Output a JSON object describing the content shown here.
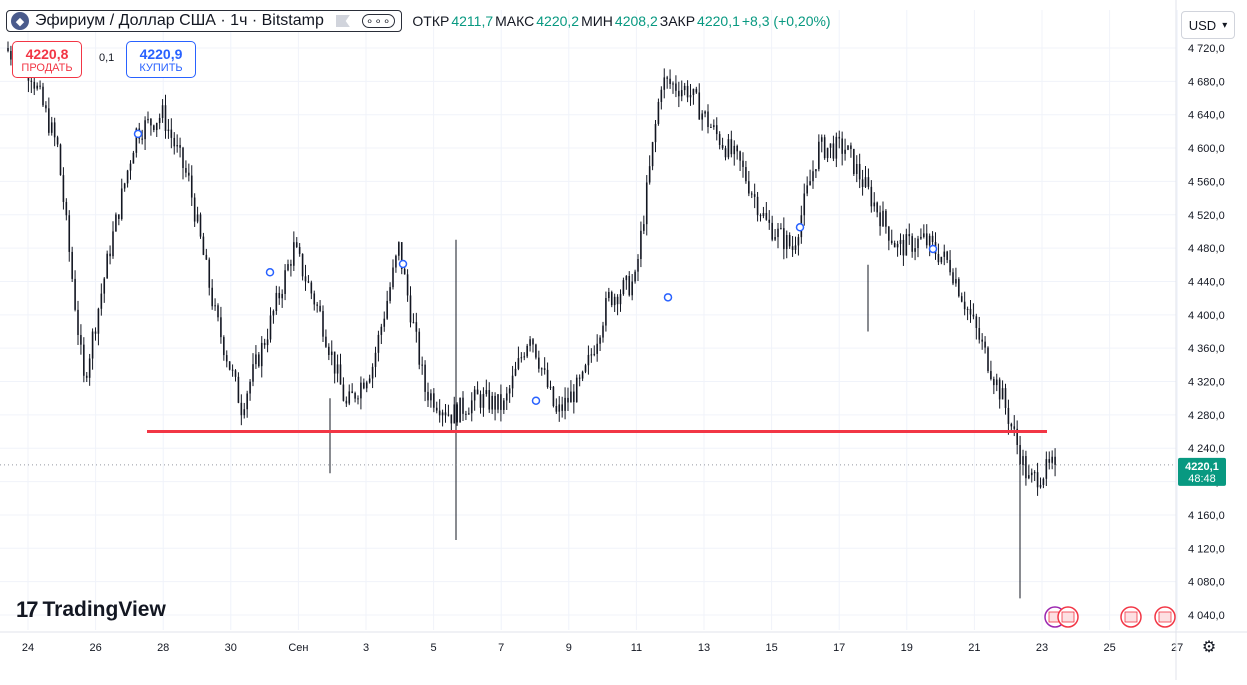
{
  "header": {
    "symbol_title": "Эфириум / Доллар США · 1ч · Bitstamp",
    "ohlc": {
      "open_label": "ОТКР",
      "open_value": "4211,7",
      "high_label": "МАКС",
      "high_value": "4220,2",
      "low_label": "МИН",
      "low_value": "4208,2",
      "close_label": "ЗАКР",
      "close_value": "4220,1",
      "change": "+8,3 (+0,20%)"
    }
  },
  "trade": {
    "sell_price": "4220,8",
    "sell_label": "ПРОДАТЬ",
    "buy_price": "4220,9",
    "buy_label": "КУПИТЬ",
    "spread": "0,1"
  },
  "currency": {
    "label": "USD"
  },
  "branding": {
    "name": "TradingView"
  },
  "price_tag": {
    "price": "4220,1",
    "countdown": "48:48"
  },
  "colors": {
    "up": "#089981",
    "down": "#f23645",
    "level_line": "#f23645",
    "buy": "#2962ff"
  },
  "icons": [
    "ethereum-icon",
    "flag-icon",
    "more-icon",
    "chevron-down-icon",
    "settings-icon",
    "us-event-flag-icon"
  ],
  "chart_data": {
    "type": "candlestick",
    "ylim": [
      4030,
      4740
    ],
    "y_ticks": [
      4040,
      4080,
      4120,
      4160,
      4200,
      4240,
      4280,
      4320,
      4360,
      4400,
      4440,
      4480,
      4520,
      4560,
      4600,
      4640,
      4680,
      4720
    ],
    "y_tick_labels": [
      "4 040,0",
      "4 080,0",
      "4 120,0",
      "4 160,0",
      "4 200,0",
      "4 240,0",
      "4 280,0",
      "4 320,0",
      "4 360,0",
      "4 400,0",
      "4 440,0",
      "4 480,0",
      "4 520,0",
      "4 560,0",
      "4 600,0",
      "4 640,0",
      "4 680,0",
      "4 720,0"
    ],
    "x_tick_labels": [
      "24",
      "26",
      "28",
      "30",
      "Сен",
      "3",
      "5",
      "7",
      "9",
      "11",
      "13",
      "15",
      "17",
      "19",
      "21",
      "23",
      "25",
      "27"
    ],
    "grid": true,
    "horizontal_level": 4260,
    "current_price": 4220.1,
    "close_path": [
      [
        0,
        4720
      ],
      [
        1,
        4690
      ],
      [
        2,
        4600
      ],
      [
        3,
        4320
      ],
      [
        4,
        4480
      ],
      [
        5,
        4620
      ],
      [
        6,
        4640
      ],
      [
        7,
        4560
      ],
      [
        8,
        4400
      ],
      [
        9,
        4290
      ],
      [
        10,
        4380
      ],
      [
        11,
        4480
      ],
      [
        12,
        4400
      ],
      [
        13,
        4290
      ],
      [
        14,
        4340
      ],
      [
        15,
        4480
      ],
      [
        16,
        4310
      ],
      [
        17,
        4280
      ],
      [
        18,
        4300
      ],
      [
        19,
        4290
      ],
      [
        20,
        4380
      ],
      [
        21,
        4280
      ],
      [
        22,
        4320
      ],
      [
        23,
        4420
      ],
      [
        24,
        4440
      ],
      [
        25,
        4680
      ],
      [
        26,
        4670
      ],
      [
        27,
        4620
      ],
      [
        28,
        4580
      ],
      [
        29,
        4510
      ],
      [
        30,
        4480
      ],
      [
        31,
        4600
      ],
      [
        32,
        4600
      ],
      [
        33,
        4540
      ],
      [
        34,
        4480
      ],
      [
        35,
        4490
      ],
      [
        36,
        4460
      ],
      [
        37,
        4380
      ],
      [
        38,
        4300
      ],
      [
        39,
        4200
      ],
      [
        40,
        4220.1
      ]
    ]
  }
}
